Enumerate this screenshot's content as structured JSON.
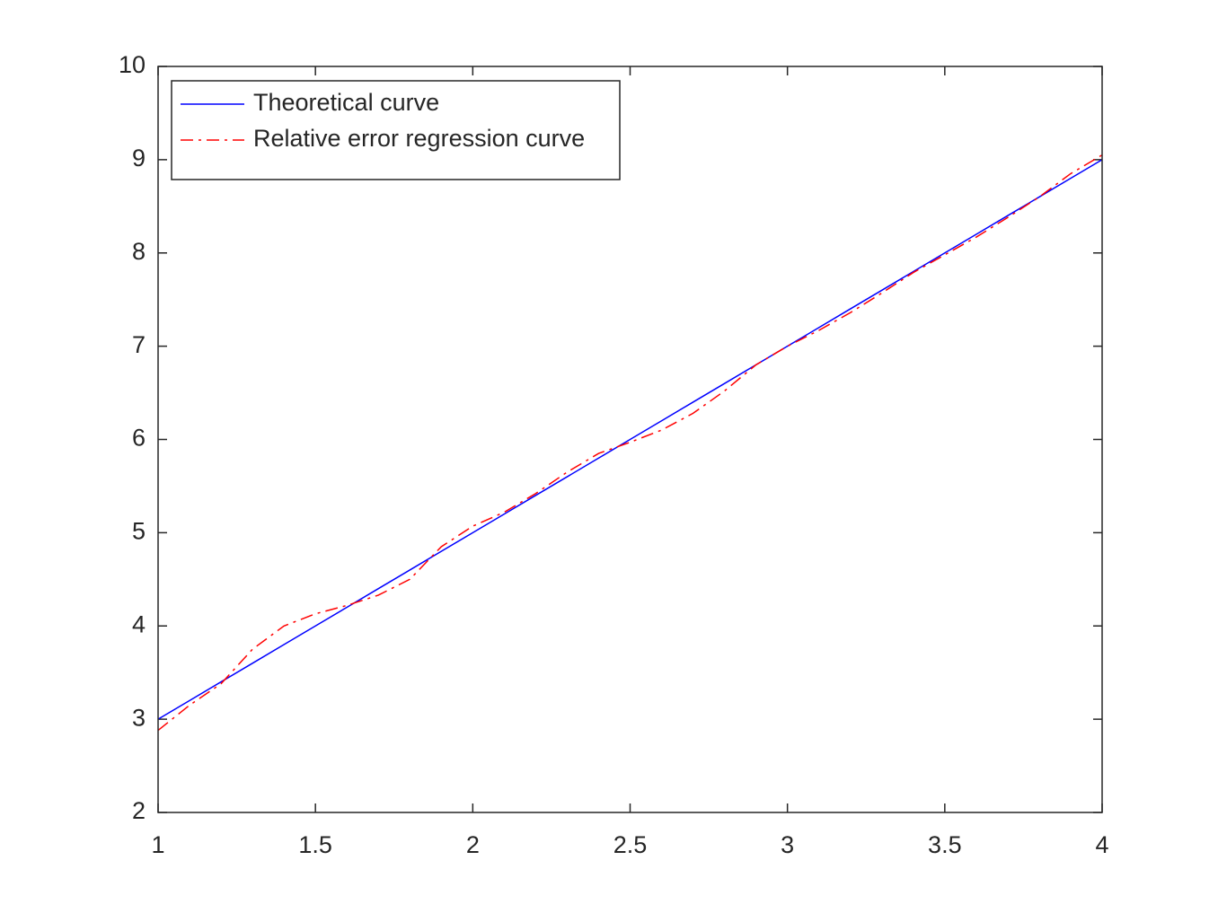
{
  "chart_data": {
    "type": "line",
    "x": [
      1,
      1.1,
      1.2,
      1.3,
      1.4,
      1.5,
      1.6,
      1.7,
      1.8,
      1.9,
      2,
      2.1,
      2.2,
      2.3,
      2.4,
      2.5,
      2.6,
      2.7,
      2.8,
      2.9,
      3,
      3.1,
      3.2,
      3.3,
      3.4,
      3.5,
      3.6,
      3.7,
      3.8,
      3.9,
      4
    ],
    "series": [
      {
        "name": "Theoretical curve",
        "color": "#0000ff",
        "style": "solid",
        "values": [
          3,
          3.2,
          3.4,
          3.6,
          3.8,
          4,
          4.2,
          4.4,
          4.6,
          4.8,
          5,
          5.2,
          5.4,
          5.6,
          5.8,
          6,
          6.2,
          6.4,
          6.6,
          6.8,
          7,
          7.2,
          7.4,
          7.6,
          7.8,
          8,
          8.2,
          8.4,
          8.6,
          8.8,
          9
        ]
      },
      {
        "name": "Relative error regression curve",
        "color": "#ff0000",
        "style": "dashdot",
        "values": [
          2.88,
          3.15,
          3.38,
          3.75,
          4.0,
          4.13,
          4.22,
          4.33,
          4.5,
          4.85,
          5.07,
          5.22,
          5.42,
          5.65,
          5.85,
          5.97,
          6.1,
          6.28,
          6.52,
          6.8,
          7.0,
          7.17,
          7.36,
          7.57,
          7.79,
          7.98,
          8.17,
          8.38,
          8.6,
          8.85,
          9.05
        ]
      }
    ],
    "xlim": [
      1,
      4
    ],
    "xticks": [
      1,
      1.5,
      2,
      2.5,
      3,
      3.5,
      4
    ],
    "ylim": [
      2,
      10
    ],
    "yticks": [
      2,
      3,
      4,
      5,
      6,
      7,
      8,
      9,
      10
    ],
    "grid": false,
    "legend": "upper left"
  }
}
